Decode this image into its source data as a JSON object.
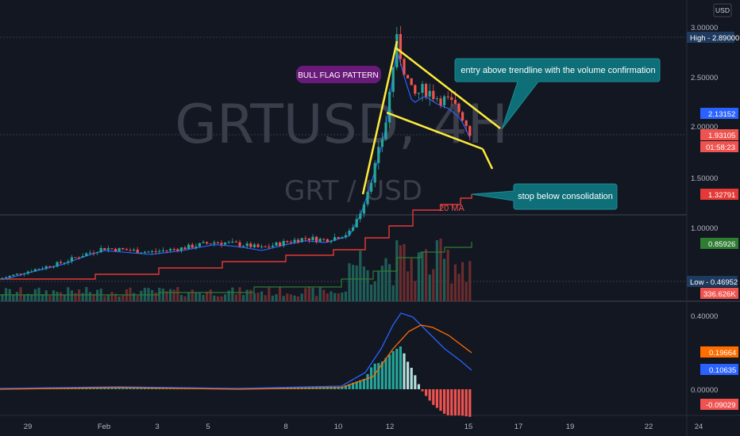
{
  "chart_data": {
    "type": "candlestick",
    "symbol_watermark": "GRTUSD, 4H",
    "pair_watermark": "GRT / USD",
    "currency_button": "USD",
    "y_axis_ticks": [
      "3.00000",
      "2.50000",
      "2.00000",
      "1.50000",
      "1.00000"
    ],
    "macd_axis_ticks": [
      "0.40000",
      "0.00000"
    ],
    "x_axis_ticks": [
      "29",
      "Feb",
      "3",
      "5",
      "8",
      "10",
      "12",
      "15",
      "17",
      "19",
      "22",
      "24"
    ],
    "price_tags": {
      "high": "High - 2.89000",
      "current": "2.13152",
      "level_a": "1.93105",
      "countdown": "01:58:23",
      "ma_level": "1.32791",
      "ma_level_2": "0.85926",
      "low": "Low - 0.46952",
      "volume": "336.626K",
      "macd_signal": "0.19664",
      "macd_line": "0.10635",
      "macd_hist": "-0.09029"
    },
    "annotations": {
      "bull_flag": "BULL FLAG PATTERN",
      "entry": "entry above trendline with the volume confirmation",
      "stop": "stop below  consolidation",
      "ma_label": "20 MA"
    },
    "high": 2.89,
    "low": 0.46952,
    "ylim": [
      0.45,
      3.05
    ],
    "colors": {
      "up": "#26a69a",
      "down": "#ef5350",
      "ma_red": "#e53935",
      "ma_green": "#2e7d32",
      "macd_blue": "#2962ff",
      "signal_orange": "#ff6d00",
      "trendline": "#ffeb3b",
      "callout": "#0e6f78",
      "bull_flag": "#6a1b7a"
    }
  }
}
